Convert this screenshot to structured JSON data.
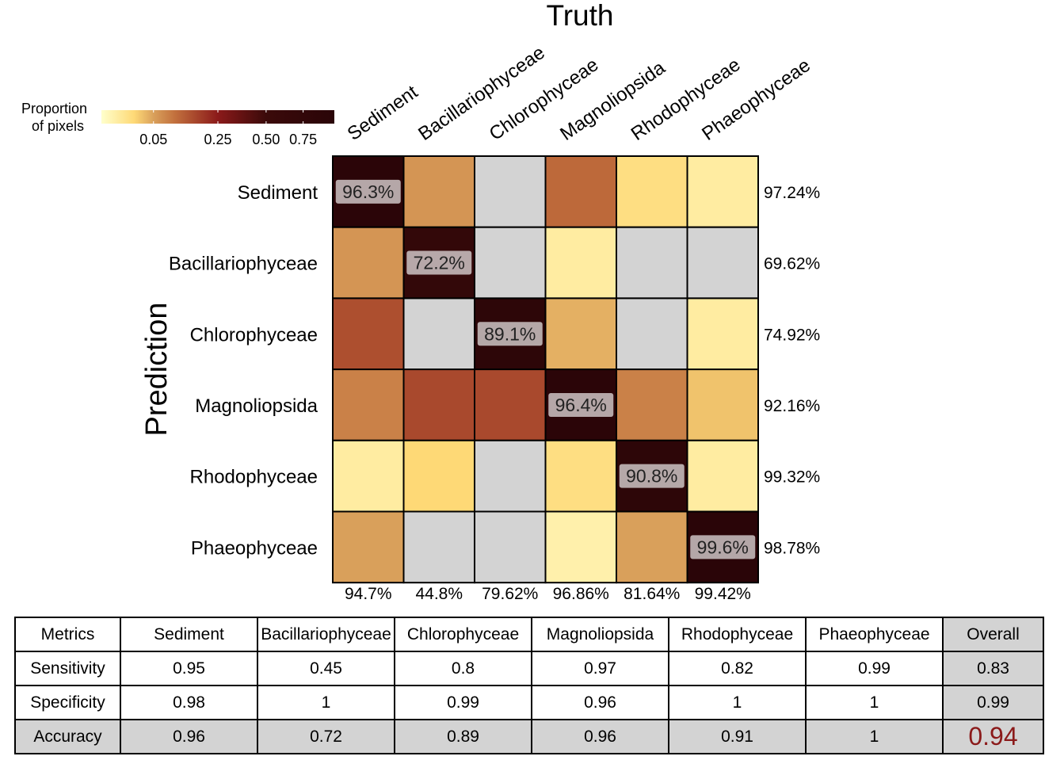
{
  "chart_data": {
    "type": "heatmap",
    "title": "Truth",
    "xlabel": "Truth",
    "ylabel": "Prediction",
    "columns": [
      "Sediment",
      "Bacillariophyceae",
      "Chlorophyceae",
      "Magnoliopsida",
      "Rhodophyceae",
      "Phaeophyceae"
    ],
    "rows": [
      "Sediment",
      "Bacillariophyceae",
      "Chlorophyceae",
      "Magnoliopsida",
      "Rhodophyceae",
      "Phaeophyceae"
    ],
    "proportions": [
      [
        0.963,
        0.06,
        null,
        0.11,
        0.015,
        0.005
      ],
      [
        0.06,
        0.722,
        null,
        0.005,
        null,
        null
      ],
      [
        0.15,
        null,
        0.891,
        0.04,
        null,
        0.005
      ],
      [
        0.08,
        0.16,
        0.16,
        0.964,
        0.08,
        0.03
      ],
      [
        0.005,
        0.02,
        null,
        0.015,
        0.908,
        0.005
      ],
      [
        0.05,
        null,
        null,
        0.003,
        0.05,
        0.996
      ]
    ],
    "cell_labels": [
      [
        "96.3%",
        "",
        "",
        "",
        "",
        ""
      ],
      [
        "",
        "72.2%",
        "",
        "",
        "",
        ""
      ],
      [
        "",
        "",
        "89.1%",
        "",
        "",
        ""
      ],
      [
        "",
        "",
        "",
        "96.4%",
        "",
        ""
      ],
      [
        "",
        "",
        "",
        "",
        "90.8%",
        ""
      ],
      [
        "",
        "",
        "",
        "",
        "",
        "99.6%"
      ]
    ],
    "row_totals": [
      "97.24%",
      "69.62%",
      "74.92%",
      "92.16%",
      "99.32%",
      "98.78%"
    ],
    "col_totals": [
      "94.7%",
      "44.8%",
      "79.62%",
      "96.86%",
      "81.64%",
      "99.42%"
    ],
    "legend": {
      "title_lines": [
        "Proportion",
        "of pixels"
      ],
      "ticks": [
        {
          "value": 0.05,
          "label": "0.05"
        },
        {
          "value": 0.25,
          "label": "0.25"
        },
        {
          "value": 0.5,
          "label": "0.50"
        },
        {
          "value": 0.75,
          "label": "0.75"
        }
      ],
      "colors": [
        "#ffffcc",
        "#fed976",
        "#d9a05b",
        "#c2703d",
        "#8b1a1a",
        "#3b0a0a",
        "#2a0508"
      ],
      "missing_color": "#d3d3d3",
      "placement": "top-left"
    },
    "metrics_table": {
      "headers": [
        "Metrics",
        "Sediment",
        "Bacillariophyceae",
        "Chlorophyceae",
        "Magnoliopsida",
        "Rhodophyceae",
        "Phaeophyceae",
        "Overall"
      ],
      "rows": [
        {
          "name": "Sensitivity",
          "values": [
            "0.95",
            "0.45",
            "0.8",
            "0.97",
            "0.82",
            "0.99"
          ],
          "overall": "0.83"
        },
        {
          "name": "Specificity",
          "values": [
            "0.98",
            "1",
            "0.99",
            "0.96",
            "1",
            "1"
          ],
          "overall": "0.99"
        },
        {
          "name": "Accuracy",
          "values": [
            "0.96",
            "0.72",
            "0.89",
            "0.96",
            "0.91",
            "1"
          ],
          "overall": "0.94"
        }
      ],
      "overall_accuracy_color": "#8b1a1a"
    }
  }
}
